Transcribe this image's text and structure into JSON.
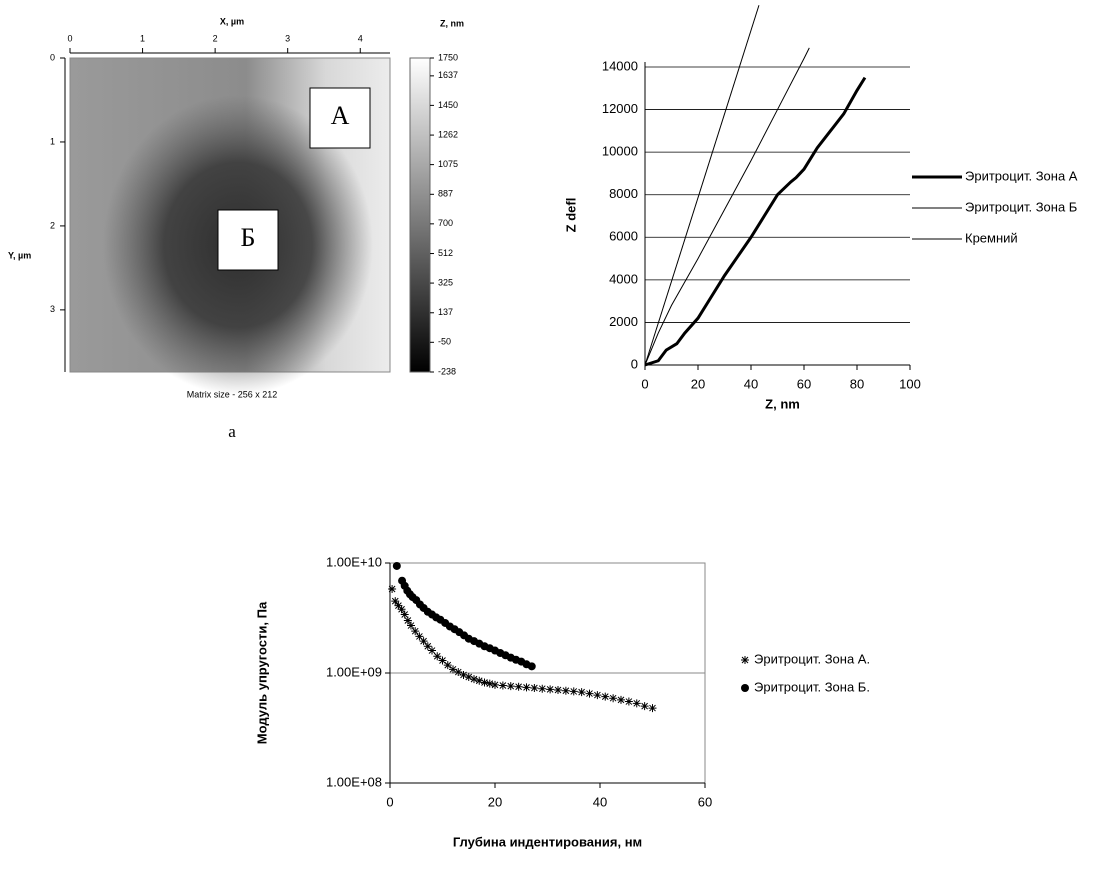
{
  "chart_data": [
    {
      "type": "heatmap",
      "x_label": "X, µm",
      "y_label": "Y, µm",
      "xlim": [
        0,
        4.41
      ],
      "xticks": [
        0,
        1,
        2,
        3,
        4
      ],
      "ylim": [
        0,
        3.74
      ],
      "yticks": [
        0,
        1,
        2,
        3
      ],
      "colorbar_label": "Z, nm",
      "zlim": [
        -238,
        1750
      ],
      "zticks": [
        1750,
        1637,
        1450,
        1262,
        1075,
        887,
        700,
        512,
        325,
        137,
        -50,
        -238
      ],
      "caption": "Matrix size - 256 x 212",
      "panel_label": "а",
      "annotations": [
        "А",
        "Б"
      ]
    },
    {
      "type": "line",
      "x_label": "Z, nm",
      "y_label": "Z defl",
      "xlim": [
        0,
        100
      ],
      "xticks": [
        0,
        20,
        40,
        60,
        80,
        100
      ],
      "ylim": [
        0,
        14000
      ],
      "yticks": [
        0,
        2000,
        4000,
        6000,
        8000,
        10000,
        12000,
        14000
      ],
      "grid": true,
      "legend": "right",
      "series": [
        {
          "name": "Эритроцит. Зона А",
          "color": "#000000",
          "line_width": 3,
          "x": [
            0,
            5,
            8,
            12,
            15,
            20,
            25,
            30,
            35,
            40,
            45,
            50,
            55,
            57,
            60,
            65,
            70,
            75,
            80,
            83
          ],
          "values": [
            0,
            200,
            700,
            1000,
            1500,
            2200,
            3200,
            4200,
            5100,
            6000,
            7000,
            8000,
            8600,
            8800,
            9200,
            10200,
            11000,
            11800,
            12900,
            13500
          ]
        },
        {
          "name": "Эритроцит. Зона Б",
          "color": "#000000",
          "line_width": 1,
          "x": [
            0,
            5,
            10,
            20,
            30,
            40,
            50,
            60,
            62
          ],
          "values": [
            0,
            1500,
            2800,
            5000,
            7300,
            9600,
            12000,
            14400,
            14900
          ]
        },
        {
          "name": "Кремний",
          "color": "#000000",
          "line_width": 1,
          "x": [
            0,
            43
          ],
          "values": [
            0,
            16900
          ]
        }
      ]
    },
    {
      "type": "scatter",
      "x_label": "Глубина индентирования, нм",
      "y_label": "Модуль упругости, Па",
      "xlim": [
        0,
        60
      ],
      "xticks": [
        0,
        20,
        40,
        60
      ],
      "ylim": [
        100000000.0,
        10000000000.0
      ],
      "log_y": true,
      "grid": true,
      "legend": "right",
      "yticks": [
        {
          "value": 100000000.0,
          "label": "1.00E+08"
        },
        {
          "value": 1000000000.0,
          "label": "1.00E+09"
        },
        {
          "value": 10000000000.0,
          "label": "1.00E+10"
        }
      ],
      "series": [
        {
          "name": "Эритроцит. Зона А.",
          "color": "#000000",
          "marker": "asterisk",
          "x": [
            0.4,
            1,
            1.6,
            2.2,
            2.8,
            3.4,
            4,
            4.8,
            5.6,
            6.4,
            7.2,
            8,
            9,
            10,
            11,
            12,
            13,
            14,
            15,
            16,
            17,
            18,
            19,
            20,
            21.5,
            23,
            24.5,
            26,
            27.5,
            29,
            30.5,
            32,
            33.5,
            35,
            36.5,
            38,
            39.5,
            41,
            42.5,
            44,
            45.5,
            47,
            48.5,
            50
          ],
          "values": [
            5800000000.0,
            4500000000.0,
            4100000000.0,
            3800000000.0,
            3400000000.0,
            3000000000.0,
            2700000000.0,
            2400000000.0,
            2150000000.0,
            1950000000.0,
            1750000000.0,
            1600000000.0,
            1420000000.0,
            1300000000.0,
            1180000000.0,
            1080000000.0,
            1020000000.0,
            960000000.0,
            920000000.0,
            880000000.0,
            850000000.0,
            820000000.0,
            800000000.0,
            780000000.0,
            770000000.0,
            760000000.0,
            750000000.0,
            740000000.0,
            730000000.0,
            720000000.0,
            710000000.0,
            700000000.0,
            690000000.0,
            680000000.0,
            670000000.0,
            650000000.0,
            630000000.0,
            610000000.0,
            590000000.0,
            570000000.0,
            550000000.0,
            530000000.0,
            500000000.0,
            480000000.0
          ]
        },
        {
          "name": "Эритроцит. Зона Б.",
          "color": "#000000",
          "marker": "circle",
          "x": [
            1.3,
            2.3,
            2.8,
            3.3,
            3.8,
            4.3,
            5,
            5.7,
            6.4,
            7.2,
            8,
            8.8,
            9.6,
            10.5,
            11.4,
            12.3,
            13.2,
            14.1,
            15,
            16,
            17,
            18,
            19,
            20,
            21,
            22,
            23,
            24,
            25,
            26,
            27
          ],
          "values": [
            9400000000.0,
            6900000000.0,
            6200000000.0,
            5600000000.0,
            5200000000.0,
            4900000000.0,
            4600000000.0,
            4200000000.0,
            3900000000.0,
            3600000000.0,
            3400000000.0,
            3200000000.0,
            3050000000.0,
            2850000000.0,
            2650000000.0,
            2500000000.0,
            2350000000.0,
            2200000000.0,
            2050000000.0,
            1950000000.0,
            1850000000.0,
            1750000000.0,
            1680000000.0,
            1600000000.0,
            1520000000.0,
            1450000000.0,
            1380000000.0,
            1320000000.0,
            1270000000.0,
            1200000000.0,
            1150000000.0
          ]
        }
      ]
    }
  ]
}
